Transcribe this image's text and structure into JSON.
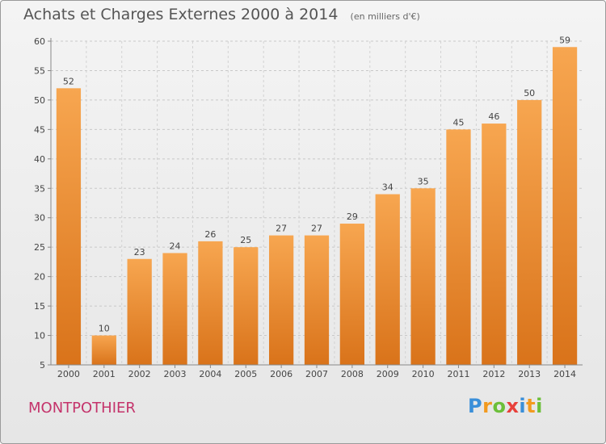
{
  "chart_data": {
    "type": "bar",
    "title": "Achats et Charges Externes 2000 à 2014",
    "subtitle": "(en milliers d'€)",
    "categories": [
      "2000",
      "2001",
      "2002",
      "2003",
      "2004",
      "2005",
      "2006",
      "2007",
      "2008",
      "2009",
      "2010",
      "2011",
      "2012",
      "2013",
      "2014"
    ],
    "values": [
      52,
      10,
      23,
      24,
      26,
      25,
      27,
      27,
      29,
      34,
      35,
      45,
      46,
      50,
      59
    ],
    "xlabel": "",
    "ylabel": "",
    "ylim": [
      5,
      60
    ],
    "yticks": [
      5,
      10,
      15,
      20,
      25,
      30,
      35,
      40,
      45,
      50,
      55,
      60
    ],
    "grid": true,
    "bar_color": "#f0963a"
  },
  "commune": "MONTPOTHIER",
  "logo": {
    "letters": [
      "P",
      "r",
      "o",
      "x",
      "i",
      "t",
      "i"
    ],
    "colors": [
      "#3a8fd9",
      "#f29a1f",
      "#6cbf3a",
      "#e8403a",
      "#3a8fd9",
      "#f29a1f",
      "#6cbf3a"
    ]
  }
}
